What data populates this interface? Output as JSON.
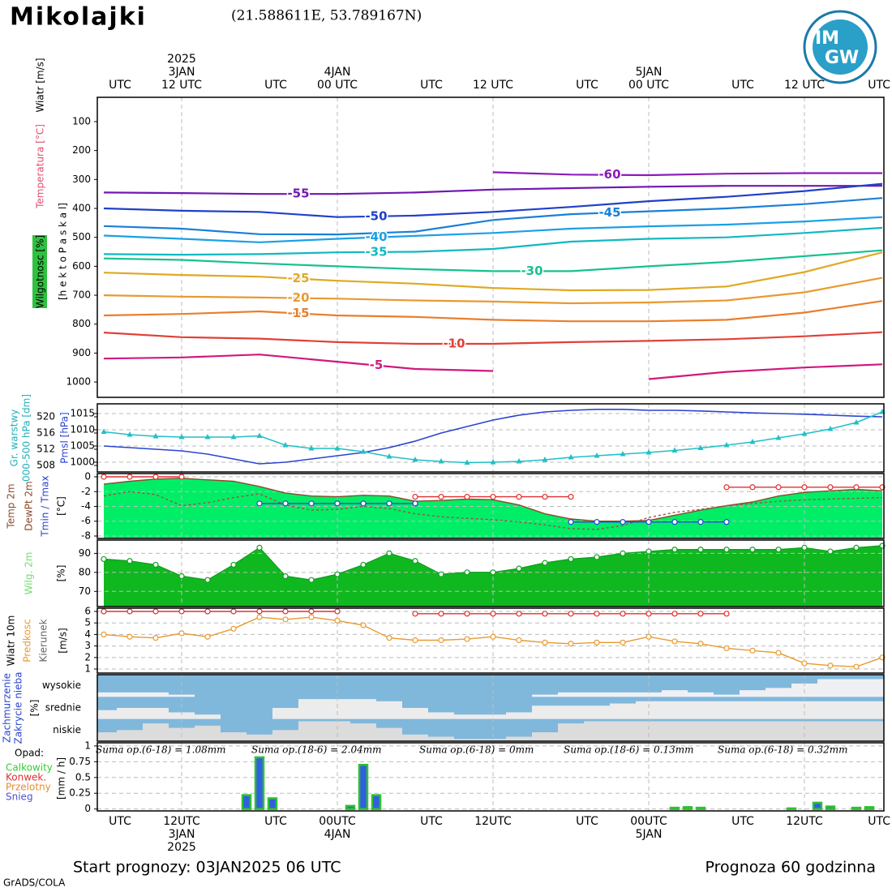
{
  "header": {
    "title": "Mikolajki",
    "coordinates": "(21.588611E, 53.789167N)",
    "logo": [
      "IM",
      "GW"
    ]
  },
  "time_axis": {
    "xlim": [
      0,
      60
    ],
    "top_ticks": [
      {
        "value": 0,
        "label": "UTC"
      },
      {
        "value": 6,
        "label": "12 UTC"
      },
      {
        "value": 12,
        "label": "UTC"
      },
      {
        "value": 18,
        "label": "00 UTC"
      },
      {
        "value": 24,
        "label": "UTC"
      },
      {
        "value": 30,
        "label": "12 UTC"
      },
      {
        "value": 36,
        "label": "UTC"
      },
      {
        "value": 42,
        "label": "00 UTC"
      },
      {
        "value": 48,
        "label": "UTC"
      },
      {
        "value": 54,
        "label": "12 UTC"
      },
      {
        "value": 60,
        "label": "UTC"
      }
    ],
    "bottom_ticks": [
      {
        "value": 0,
        "label": "UTC"
      },
      {
        "value": 6,
        "label": "12UTC"
      },
      {
        "value": 12,
        "label": "UTC"
      },
      {
        "value": 18,
        "label": "00UTC"
      },
      {
        "value": 24,
        "label": "UTC"
      },
      {
        "value": 30,
        "label": "12UTC"
      },
      {
        "value": 36,
        "label": "UTC"
      },
      {
        "value": 42,
        "label": "00UTC"
      },
      {
        "value": 48,
        "label": "UTC"
      },
      {
        "value": 54,
        "label": "12UTC"
      },
      {
        "value": 60,
        "label": "UTC"
      }
    ],
    "dates": [
      {
        "value": 6,
        "label": "3JAN"
      },
      {
        "value": 18,
        "label": "4JAN"
      },
      {
        "value": 42,
        "label": "5JAN"
      }
    ],
    "year": {
      "value": 6,
      "label": "2025"
    }
  },
  "chart_data": [
    {
      "type": "isotherms",
      "axis_label": "[h e k t o P a s k a l]",
      "side_labels": [
        "Wiatr [m/s]",
        "Temperatura [°C]",
        "Wilgotnosc [%]"
      ],
      "ylim": [
        1053,
        16
      ],
      "yticks": [
        100,
        200,
        300,
        400,
        500,
        600,
        700,
        800,
        900,
        1000
      ],
      "x": [
        0,
        6,
        12,
        18,
        24,
        30,
        36,
        42,
        48,
        54,
        60
      ],
      "series": [
        {
          "name": "-60",
          "color": "#8a1cb8",
          "values": [
            null,
            null,
            null,
            null,
            null,
            275,
            283,
            285,
            280,
            278,
            278
          ]
        },
        {
          "name": "-55",
          "color": "#7018b0",
          "values": [
            345,
            347,
            350,
            350,
            345,
            335,
            330,
            325,
            322,
            322,
            322
          ]
        },
        {
          "name": "-50",
          "color": "#2040c8",
          "values": [
            400,
            408,
            412,
            430,
            425,
            412,
            395,
            375,
            360,
            340,
            315
          ]
        },
        {
          "name": "-45",
          "color": "#1a7fd8",
          "values": [
            461,
            470,
            489,
            490,
            480,
            440,
            420,
            410,
            400,
            385,
            364
          ]
        },
        {
          "name": "-40",
          "color": "#1aa0e6",
          "values": [
            494,
            505,
            517,
            505,
            495,
            485,
            470,
            462,
            456,
            445,
            430
          ]
        },
        {
          "name": "-35",
          "color": "#12b8c0",
          "values": [
            558,
            560,
            558,
            552,
            550,
            540,
            515,
            505,
            500,
            485,
            467
          ]
        },
        {
          "name": "-30",
          "color": "#18c090",
          "values": [
            573,
            578,
            590,
            600,
            610,
            617,
            617,
            600,
            585,
            565,
            545
          ]
        },
        {
          "name": "-25",
          "color": "#e0a824",
          "values": [
            622,
            630,
            636,
            650,
            660,
            675,
            683,
            682,
            670,
            620,
            552
          ]
        },
        {
          "name": "-20",
          "color": "#e89a30",
          "values": [
            700,
            705,
            708,
            712,
            718,
            722,
            728,
            725,
            718,
            690,
            640
          ]
        },
        {
          "name": "-15",
          "color": "#e87e2c",
          "values": [
            770,
            765,
            756,
            770,
            775,
            785,
            790,
            790,
            785,
            760,
            720
          ]
        },
        {
          "name": "-10",
          "color": "#e04038",
          "values": [
            829,
            845,
            850,
            862,
            868,
            868,
            862,
            858,
            852,
            842,
            828
          ]
        },
        {
          "name": "-5",
          "color": "#d01880",
          "values": [
            919,
            915,
            905,
            930,
            955,
            962,
            null,
            990,
            965,
            950,
            939
          ]
        }
      ]
    },
    {
      "type": "pressure",
      "side_labels": [
        "Gr. warstwy",
        "000-500 hPa [dm]",
        "Pmsl [hPa]"
      ],
      "x": [
        0,
        2,
        4,
        6,
        8,
        10,
        12,
        14,
        16,
        18,
        20,
        22,
        24,
        26,
        28,
        30,
        32,
        34,
        36,
        38,
        40,
        42,
        44,
        46,
        48,
        50,
        52,
        54,
        56,
        58,
        60
      ],
      "ylim": [
        997,
        1018
      ],
      "yticks": [
        1000,
        1005,
        1010,
        1015
      ],
      "y2lim": [
        506.4,
        523.2
      ],
      "y2ticks": [
        508,
        512,
        516,
        520
      ],
      "grid": true,
      "series": [
        {
          "color": "#2a44d0",
          "values": [
            1005,
            1004.5,
            1004,
            1003.5,
            1002.5,
            1001,
            999.5,
            1000,
            1001,
            1002,
            1003,
            1004.5,
            1006.5,
            1009,
            1011,
            1013,
            1014.5,
            1015.5,
            1016,
            1016.3,
            1016.3,
            1016,
            1016,
            1015.8,
            1015.5,
            1015.2,
            1015,
            1014.8,
            1014.5,
            1014.2,
            1014
          ]
        },
        {
          "color": "#20c0c8",
          "axis": "y2",
          "marker": "triangle",
          "values": [
            516.3,
            515.6,
            515.2,
            515,
            515,
            515,
            515.3,
            513,
            512.2,
            512.2,
            511.4,
            510.2,
            509.4,
            509,
            508.7,
            508.8,
            509,
            509.4,
            510,
            510.4,
            510.8,
            511.2,
            511.7,
            512.3,
            513,
            513.8,
            514.8,
            515.8,
            517,
            518.6,
            521.2
          ]
        }
      ]
    },
    {
      "type": "temperature",
      "side_labels": [
        {
          "label": "Temp 2m",
          "color": "#8b4a2a"
        },
        {
          "label": "DewPt 2m",
          "color": "#8b4a2a"
        },
        {
          "label": "Tmin / Tmax",
          "color": "#2a44d0"
        },
        {
          "label": "[°C]",
          "color": "#000000"
        }
      ],
      "x": [
        0,
        2,
        4,
        6,
        8,
        10,
        12,
        14,
        16,
        18,
        20,
        22,
        24,
        26,
        28,
        30,
        32,
        34,
        36,
        38,
        40,
        42,
        44,
        46,
        48,
        50,
        52,
        54,
        56,
        58,
        60
      ],
      "ylim": [
        -8.33,
        0.44
      ],
      "yticks": [
        -8,
        -6,
        -4,
        -2,
        0
      ],
      "grid": true,
      "series": [
        {
          "color": "#8b4a2a",
          "fill": "#00ee66",
          "values": [
            -1,
            -0.6,
            -0.3,
            -0.2,
            -0.4,
            -0.6,
            -1.3,
            -2.2,
            -2.6,
            -2.7,
            -2.5,
            -2.6,
            -3.3,
            -3.2,
            -3.0,
            -3.1,
            -3.8,
            -5.0,
            -5.7,
            -6.0,
            -6.0,
            -5.9,
            -5.2,
            -4.5,
            -3.9,
            -3.4,
            -2.6,
            -2.1,
            -1.9,
            -1.7,
            -1.9
          ]
        },
        {
          "color": "#a05040",
          "dashed": true,
          "values": [
            -2.6,
            -2.0,
            -2.4,
            -3.9,
            -3.5,
            -2.8,
            -2.3,
            -3.8,
            -4.5,
            -4.4,
            -4.0,
            -4.3,
            -5.0,
            -5.4,
            -5.6,
            -5.8,
            -6.1,
            -6.5,
            -7.0,
            -7.1,
            -6.6,
            -5.5,
            -4.8,
            -4.4,
            -3.9,
            -3.6,
            -3.3,
            -3.1,
            -3.0,
            -2.9,
            -2.8
          ]
        },
        {
          "color": "#e03030",
          "marker": "circle",
          "values": [
            0,
            0,
            0,
            0,
            null,
            null,
            null,
            null,
            null,
            null,
            null,
            null,
            -2.7,
            -2.7,
            -2.7,
            -2.7,
            -2.7,
            -2.7,
            -2.7,
            null,
            null,
            null,
            null,
            null,
            -1.4,
            -1.4,
            -1.4,
            -1.4,
            -1.4,
            -1.4,
            -1.4
          ]
        },
        {
          "color": "#2a44e0",
          "marker": "circle",
          "values": [
            null,
            null,
            null,
            null,
            null,
            null,
            -3.6,
            -3.6,
            -3.6,
            -3.6,
            -3.6,
            -3.6,
            -3.6,
            null,
            null,
            null,
            null,
            null,
            -6.1,
            -6.1,
            -6.1,
            -6.1,
            -6.1,
            -6.1,
            -6.1,
            null,
            null,
            null,
            null,
            null,
            null
          ]
        }
      ]
    },
    {
      "type": "humidity",
      "side_labels": [
        {
          "label": "Wilg. 2m",
          "color": "#70dd70"
        },
        {
          "label": "[%]",
          "color": "#000000"
        }
      ],
      "x": [
        0,
        2,
        4,
        6,
        8,
        10,
        12,
        14,
        16,
        18,
        20,
        22,
        24,
        26,
        28,
        30,
        32,
        34,
        36,
        38,
        40,
        42,
        44,
        46,
        48,
        50,
        52,
        54,
        56,
        58,
        60
      ],
      "ylim": [
        62,
        97
      ],
      "yticks": [
        70,
        80,
        90
      ],
      "grid": true,
      "series": [
        {
          "color": "#10a020",
          "fill": "#10b820",
          "marker": "circle",
          "values": [
            87,
            86,
            84,
            78,
            76,
            84,
            93,
            78,
            76,
            79,
            84,
            90,
            86,
            79,
            80,
            80,
            82,
            85,
            87,
            88,
            90,
            91,
            92,
            92,
            92,
            92,
            92,
            93,
            91,
            93,
            94
          ]
        }
      ]
    },
    {
      "type": "wind",
      "side_labels": [
        {
          "label": "Wiatr 10m",
          "color": "#000000"
        },
        {
          "label": "Predkosc",
          "color": "#e89a30"
        },
        {
          "label": "Kierunek",
          "color": "#666666"
        },
        {
          "label": "[m/s]",
          "color": "#000000"
        }
      ],
      "x": [
        0,
        2,
        4,
        6,
        8,
        10,
        12,
        14,
        16,
        18,
        20,
        22,
        24,
        26,
        28,
        30,
        32,
        34,
        36,
        38,
        40,
        42,
        44,
        46,
        48,
        50,
        52,
        54,
        56,
        58,
        60
      ],
      "ylim": [
        0.65,
        6.28
      ],
      "yticks": [
        1,
        2,
        3,
        4,
        5,
        6
      ],
      "grid": true,
      "series": [
        {
          "color": "#e89a30",
          "marker": "circle",
          "values": [
            4,
            3.8,
            3.7,
            4.1,
            3.8,
            4.5,
            5.5,
            5.3,
            5.5,
            5.2,
            4.8,
            3.7,
            3.5,
            3.5,
            3.6,
            3.8,
            3.5,
            3.3,
            3.2,
            3.3,
            3.3,
            3.8,
            3.4,
            3.2,
            2.8,
            2.6,
            2.4,
            1.5,
            1.3,
            1.2,
            2
          ]
        },
        {
          "color": "#e03030",
          "marker": "circle",
          "values": [
            6,
            6,
            6,
            6,
            6,
            6,
            6,
            6,
            6,
            6,
            null,
            null,
            5.8,
            5.8,
            5.8,
            5.8,
            5.8,
            5.8,
            5.8,
            5.8,
            5.8,
            5.8,
            5.8,
            5.8,
            5.8,
            null,
            null,
            null,
            null,
            null,
            null
          ]
        }
      ]
    },
    {
      "type": "clouds",
      "side_labels": [
        "Zachmurzenie",
        "Zakrycie nieba",
        "[%]"
      ],
      "categories": [
        "wysokie",
        "srednie",
        "niskie"
      ],
      "x": [
        0,
        2,
        4,
        6,
        8,
        10,
        12,
        14,
        16,
        18,
        20,
        22,
        24,
        26,
        28,
        30,
        32,
        34,
        36,
        38,
        40,
        42,
        44,
        46,
        48,
        50,
        52,
        54,
        56,
        58,
        60
      ],
      "series": [
        {
          "color": "#f0f0f4",
          "values": [
            20,
            20,
            20,
            10,
            0,
            0,
            0,
            0,
            0,
            0,
            0,
            0,
            0,
            0,
            0,
            0,
            0,
            10,
            20,
            20,
            20,
            20,
            30,
            20,
            10,
            30,
            40,
            60,
            80,
            80,
            80
          ]
        },
        {
          "color": "#ececec",
          "values": [
            40,
            50,
            50,
            30,
            20,
            0,
            0,
            50,
            90,
            90,
            90,
            80,
            50,
            30,
            20,
            20,
            30,
            60,
            60,
            60,
            70,
            80,
            80,
            80,
            80,
            80,
            80,
            80,
            80,
            80,
            80
          ]
        },
        {
          "color": "#dcdcdc",
          "values": [
            40,
            50,
            80,
            60,
            70,
            40,
            30,
            50,
            90,
            90,
            80,
            60,
            30,
            20,
            10,
            10,
            20,
            40,
            80,
            90,
            90,
            90,
            90,
            90,
            90,
            90,
            90,
            90,
            90,
            90,
            90
          ]
        }
      ]
    },
    {
      "type": "precipitation",
      "axis_label": "[mm / h]",
      "legend_title": "Opad:",
      "legend": [
        {
          "name": "Calkowity",
          "color": "#30d030"
        },
        {
          "name": "Konwek.",
          "color": "#e03030"
        },
        {
          "name": "Przelotny",
          "color": "#e88a30"
        },
        {
          "name": "Snieg",
          "color": "#5050d0"
        }
      ],
      "sums": [
        "Suma op.(6-18) = 1.08mm",
        "Suma op.(18-6) = 2.04mm",
        "Suma op.(6-18) = 0mm",
        "Suma op.(18-6) = 0.13mm",
        "Suma op.(6-18) = 0.32mm"
      ],
      "x": [
        11,
        12,
        13,
        19,
        20,
        21,
        44,
        45,
        46,
        53,
        55,
        56,
        58,
        59
      ],
      "values": [
        0.22,
        0.82,
        0.17,
        0.05,
        0.7,
        0.22,
        0.02,
        0.03,
        0.02,
        0.01,
        0.1,
        0.04,
        0.02,
        0.03
      ],
      "color": "#3060e0",
      "edge_color": "#30c030",
      "ylim": [
        -0.03,
        1.05
      ],
      "yticks": [
        0,
        0.25,
        0.5,
        0.75,
        1
      ],
      "grid": true
    }
  ],
  "footer": {
    "start": "Start prognozy: 03JAN2025 06 UTC",
    "horizon": "Prognoza 60 godzinna",
    "credit": "GrADS/COLA"
  }
}
